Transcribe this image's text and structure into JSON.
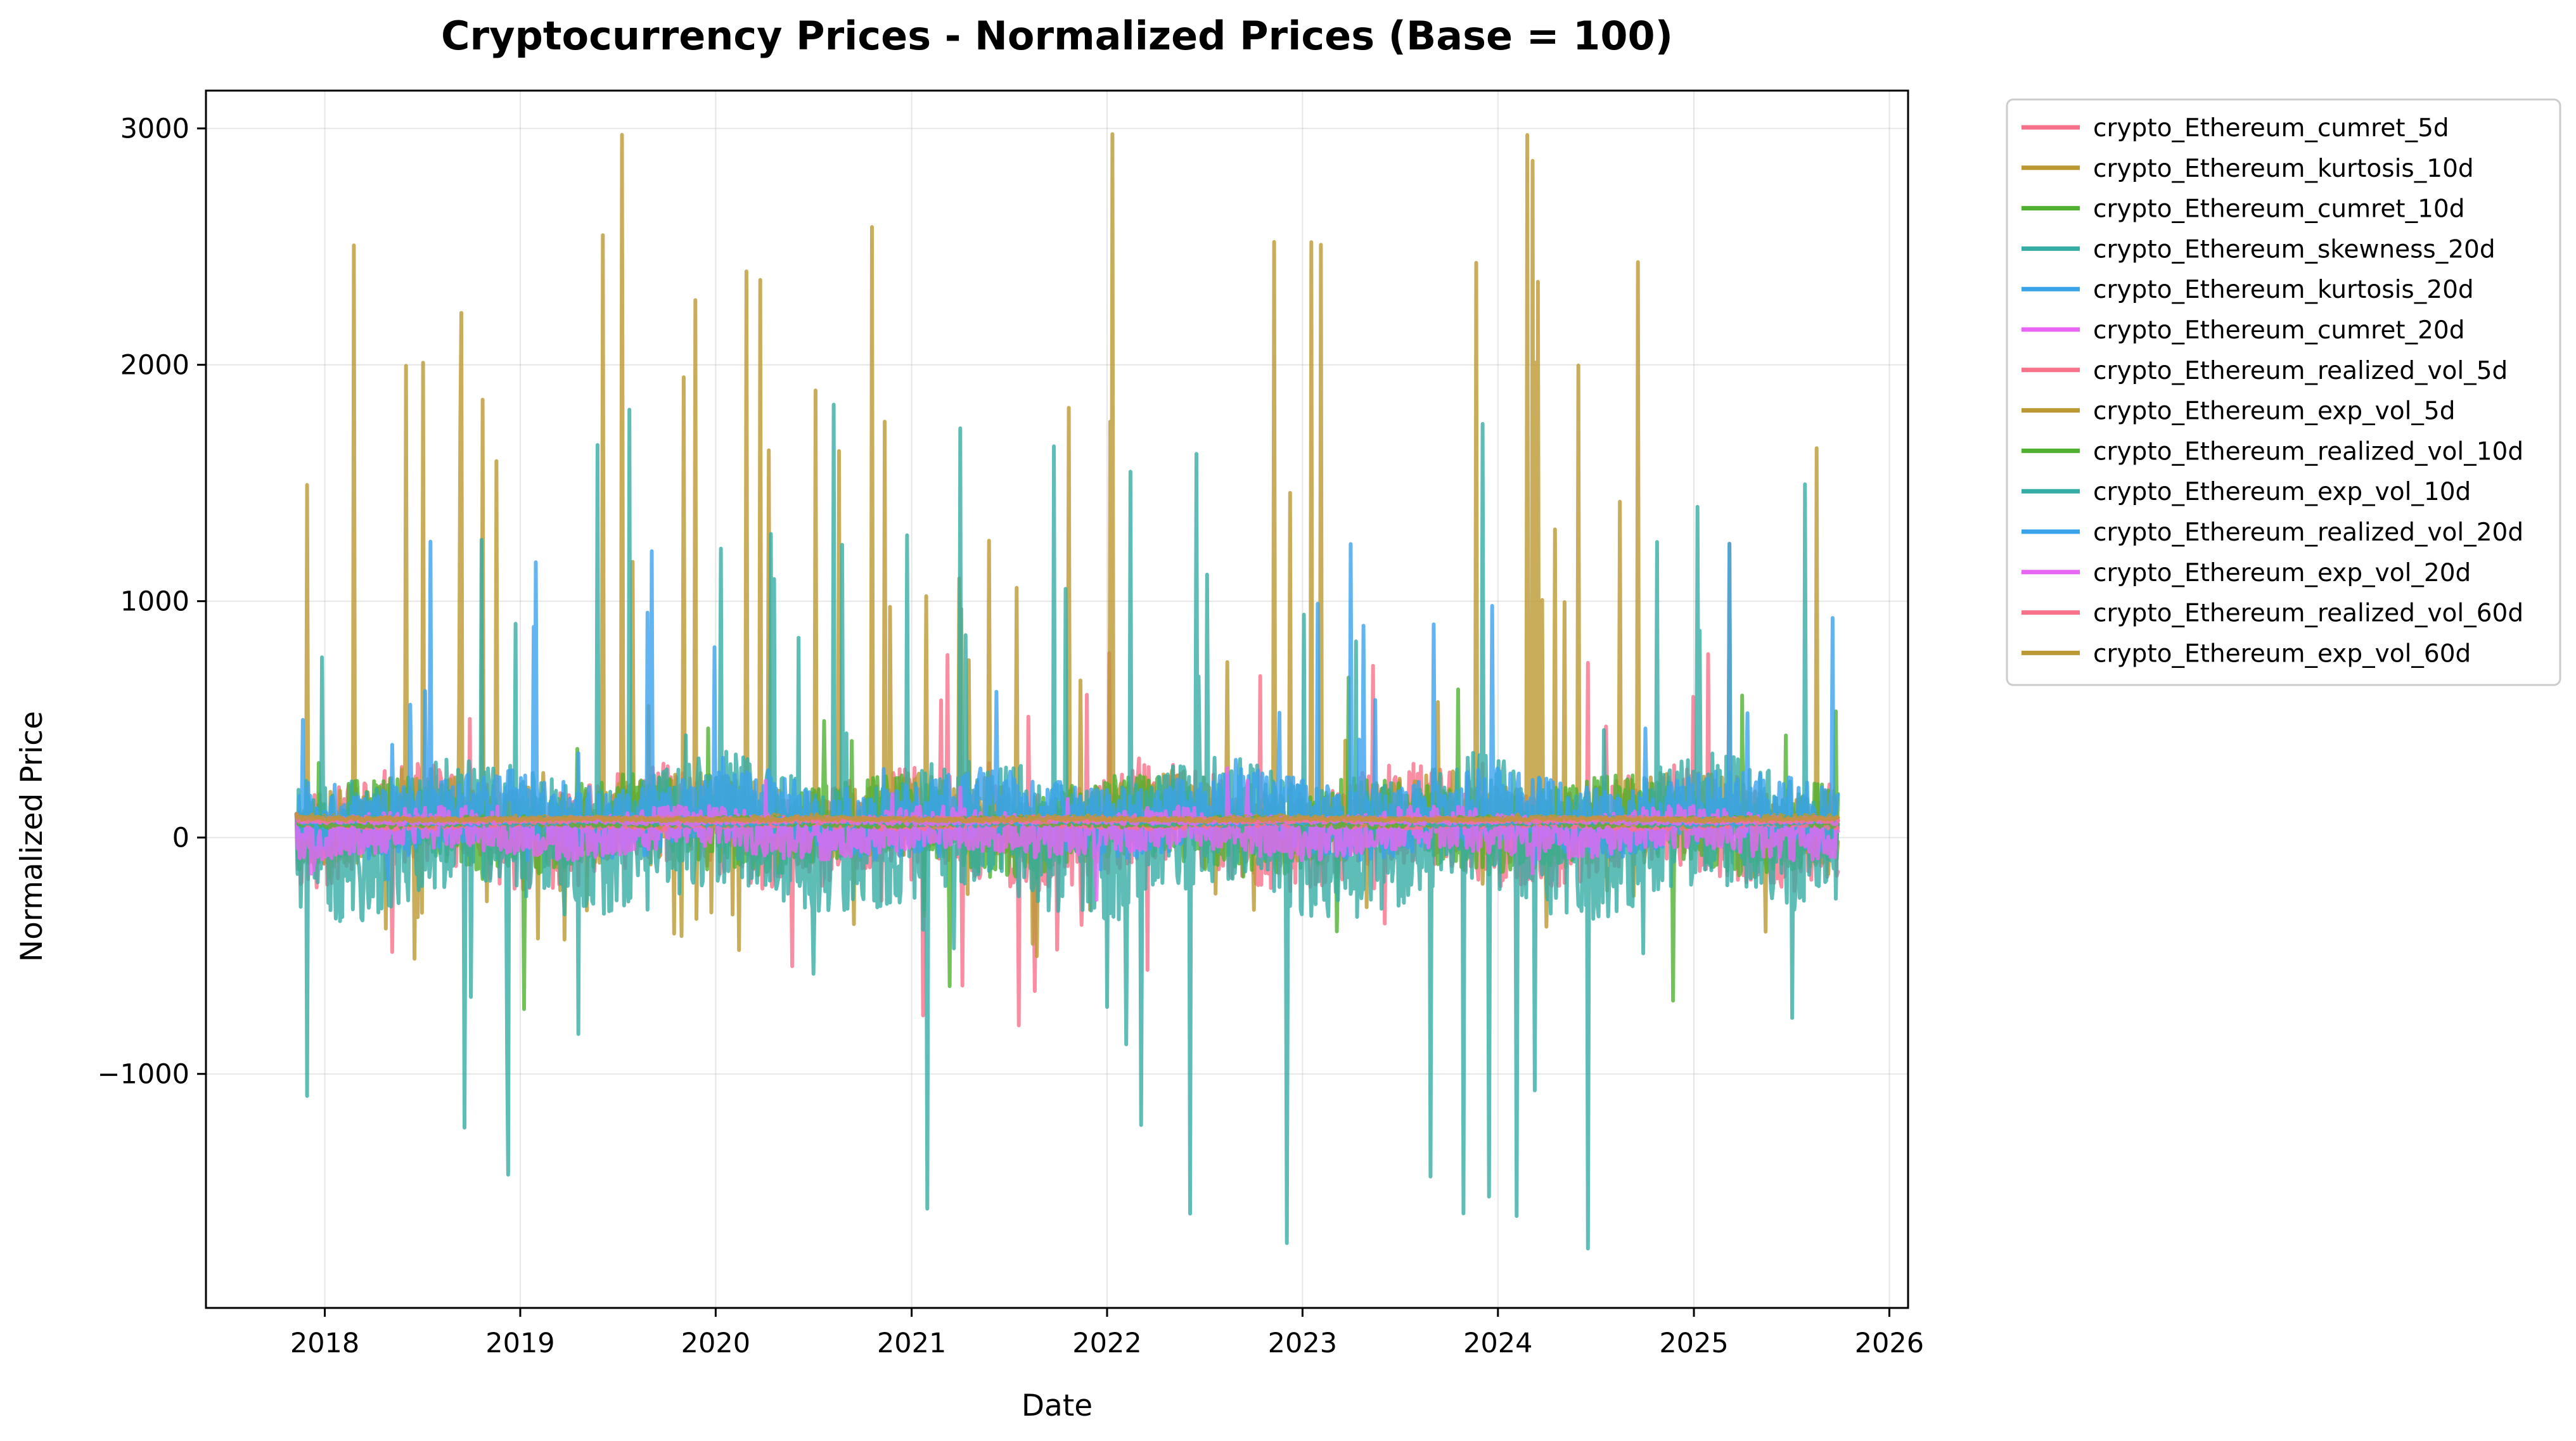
{
  "chart_data": {
    "type": "line",
    "title": "Cryptocurrency Prices - Normalized Prices (Base = 100)",
    "xlabel": "Date",
    "ylabel": "Normalized Price",
    "x_ticks": [
      "2018",
      "2019",
      "2020",
      "2021",
      "2022",
      "2023",
      "2024",
      "2025",
      "2026"
    ],
    "y_ticks": [
      -1000,
      0,
      1000,
      2000,
      3000
    ],
    "y_tick_labels": [
      "−1000",
      "0",
      "1000",
      "2000",
      "3000"
    ],
    "xlim": [
      "2017-05-24",
      "2026-02-05"
    ],
    "ylim": [
      -1990,
      3160
    ],
    "grid": true,
    "legend_position": "outside-right",
    "x_start": "2017-11-09",
    "x_end": "2025-09-27",
    "series": [
      {
        "name": "crypto_Ethereum_cumret_5d",
        "color": "#f77189",
        "baseline": 40,
        "amplitude": 210,
        "spike_up": 750,
        "spike_down": 980,
        "spike_rate": 0.02,
        "seed": 11
      },
      {
        "name": "crypto_Ethereum_kurtosis_10d",
        "color": "#bb9832",
        "baseline": 80,
        "amplitude": 160,
        "spike_up": 2900,
        "spike_down": 600,
        "spike_rate": 0.06,
        "seed": 23
      },
      {
        "name": "crypto_Ethereum_cumret_10d",
        "color": "#50b131",
        "baseline": 50,
        "amplitude": 170,
        "spike_up": 650,
        "spike_down": 800,
        "spike_rate": 0.015,
        "seed": 37
      },
      {
        "name": "crypto_Ethereum_skewness_20d",
        "color": "#36ada4",
        "baseline": 0,
        "amplitude": 280,
        "spike_up": 1850,
        "spike_down": 1770,
        "spike_rate": 0.05,
        "seed": 41
      },
      {
        "name": "crypto_Ethereum_kurtosis_20d",
        "color": "#3ba3ec",
        "baseline": 100,
        "amplitude": 150,
        "spike_up": 1200,
        "spike_down": 300,
        "spike_rate": 0.04,
        "seed": 53
      },
      {
        "name": "crypto_Ethereum_cumret_20d",
        "color": "#e866f4",
        "baseline": 20,
        "amplitude": 90,
        "spike_up": 400,
        "spike_down": 350,
        "spike_rate": 0.01,
        "seed": 67
      },
      {
        "name": "crypto_Ethereum_realized_vol_5d",
        "color": "#f77189",
        "baseline": 60,
        "amplitude": 25,
        "spike_up": 0,
        "spike_down": 0,
        "spike_rate": 0,
        "seed": 71
      },
      {
        "name": "crypto_Ethereum_exp_vol_5d",
        "color": "#bb9832",
        "baseline": 70,
        "amplitude": 25,
        "spike_up": 0,
        "spike_down": 0,
        "spike_rate": 0,
        "seed": 83
      },
      {
        "name": "crypto_Ethereum_realized_vol_10d",
        "color": "#50b131",
        "baseline": 65,
        "amplitude": 22,
        "spike_up": 0,
        "spike_down": 0,
        "spike_rate": 0,
        "seed": 97
      },
      {
        "name": "crypto_Ethereum_exp_vol_10d",
        "color": "#36ada4",
        "baseline": 68,
        "amplitude": 20,
        "spike_up": 0,
        "spike_down": 0,
        "spike_rate": 0,
        "seed": 101
      },
      {
        "name": "crypto_Ethereum_realized_vol_20d",
        "color": "#3ba3ec",
        "baseline": 72,
        "amplitude": 18,
        "spike_up": 0,
        "spike_down": 0,
        "spike_rate": 0,
        "seed": 113
      },
      {
        "name": "crypto_Ethereum_exp_vol_20d",
        "color": "#e866f4",
        "baseline": 70,
        "amplitude": 16,
        "spike_up": 0,
        "spike_down": 0,
        "spike_rate": 0,
        "seed": 127
      },
      {
        "name": "crypto_Ethereum_realized_vol_60d",
        "color": "#f77189",
        "baseline": 75,
        "amplitude": 12,
        "spike_up": 0,
        "spike_down": 0,
        "spike_rate": 0,
        "seed": 131
      },
      {
        "name": "crypto_Ethereum_exp_vol_60d",
        "color": "#bb9832",
        "baseline": 78,
        "amplitude": 10,
        "spike_up": 0,
        "spike_down": 0,
        "spike_rate": 0,
        "seed": 139
      }
    ]
  }
}
